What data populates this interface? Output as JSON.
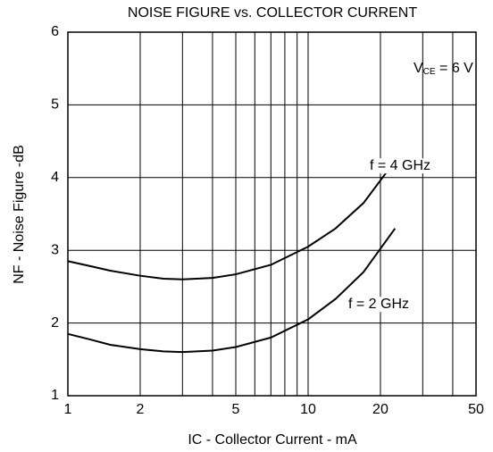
{
  "chart_data": {
    "type": "line",
    "title": "NOISE FIGURE vs. COLLECTOR CURRENT",
    "x_label": "IC - Collector Current - mA",
    "y_label": "NF - Noise Figure -dB",
    "xscale": "log",
    "xlim": [
      1,
      50
    ],
    "ylim": [
      1,
      6
    ],
    "xticks": [
      1,
      2,
      5,
      10,
      20,
      50
    ],
    "xgrid": [
      1,
      2,
      3,
      4,
      5,
      6,
      7,
      8,
      9,
      10,
      20,
      30,
      40,
      50
    ],
    "yticks": [
      1,
      2,
      3,
      4,
      5,
      6
    ],
    "grid": true,
    "annotation": {
      "text": "V",
      "subscript": "CE",
      "suffix": " = 6 V"
    },
    "series": [
      {
        "name": "f = 4 GHz",
        "color": "#000000",
        "x": [
          1,
          1.25,
          1.5,
          2,
          2.5,
          3,
          4,
          5,
          7,
          10,
          13,
          17,
          21.5
        ],
        "values": [
          2.85,
          2.78,
          2.72,
          2.65,
          2.61,
          2.6,
          2.62,
          2.67,
          2.8,
          3.05,
          3.3,
          3.65,
          4.1
        ]
      },
      {
        "name": "f = 2 GHz",
        "color": "#000000",
        "x": [
          1,
          1.25,
          1.5,
          2,
          2.5,
          3,
          4,
          5,
          7,
          10,
          13,
          17,
          23
        ],
        "values": [
          1.85,
          1.77,
          1.7,
          1.64,
          1.61,
          1.6,
          1.62,
          1.67,
          1.8,
          2.05,
          2.33,
          2.7,
          3.3
        ]
      }
    ]
  }
}
